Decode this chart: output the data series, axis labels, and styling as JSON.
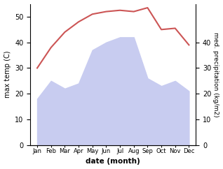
{
  "months": [
    "Jan",
    "Feb",
    "Mar",
    "Apr",
    "May",
    "Jun",
    "Jul",
    "Aug",
    "Sep",
    "Oct",
    "Nov",
    "Dec"
  ],
  "temperature": [
    30,
    38,
    44,
    48,
    51,
    52,
    52.5,
    52,
    53.5,
    45,
    45.5,
    39
  ],
  "precipitation": [
    18,
    25,
    22,
    24,
    37,
    40,
    42,
    42,
    26,
    23,
    25,
    21
  ],
  "temp_color": "#cc5555",
  "precip_fill_color": "#c8ccf0",
  "left_ylim": [
    0,
    55
  ],
  "left_yticks": [
    0,
    10,
    20,
    30,
    40,
    50
  ],
  "right_ylim": [
    0,
    55
  ],
  "right_yticks": [
    0,
    10,
    20,
    30,
    40
  ],
  "xlabel": "date (month)",
  "ylabel_left": "max temp (C)",
  "ylabel_right": "med. precipitation (kg/m2)",
  "background_color": "#ffffff",
  "figsize": [
    3.18,
    2.42
  ],
  "dpi": 100
}
